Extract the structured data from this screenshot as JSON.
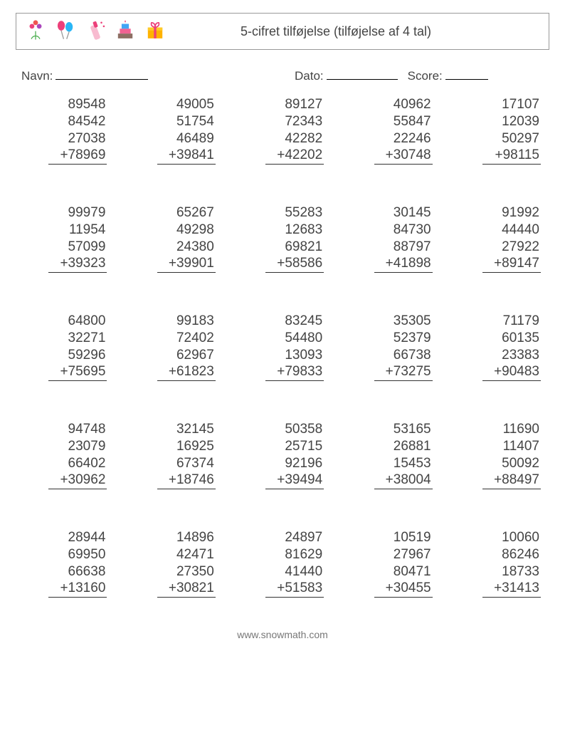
{
  "header": {
    "title": "5-cifret tilføjelse (tilføjelse af 4 tal)",
    "icons": [
      {
        "name": "bouquet",
        "colors": [
          "#e91e63",
          "#4caf50"
        ]
      },
      {
        "name": "balloons",
        "colors": [
          "#e91e63",
          "#9c27b0",
          "#29b6f6"
        ]
      },
      {
        "name": "champagne",
        "colors": [
          "#ec407a",
          "#f8bbd0"
        ]
      },
      {
        "name": "cake",
        "colors": [
          "#42a5f5",
          "#f06292",
          "#8d6e63"
        ]
      },
      {
        "name": "gift",
        "colors": [
          "#ffb300",
          "#ec407a"
        ]
      }
    ]
  },
  "labels": {
    "name": "Navn:",
    "date": "Dato:",
    "score": "Score:"
  },
  "blank_widths": {
    "name": 130,
    "date": 100,
    "score": 60
  },
  "style": {
    "font_size_problem": 19,
    "font_size_title": 18,
    "font_size_meta": 17,
    "text_color": "#444444",
    "border_color": "#999999",
    "columns": 5,
    "rows": 5
  },
  "problems": [
    {
      "addends": [
        89548,
        84542,
        27038,
        78969
      ]
    },
    {
      "addends": [
        49005,
        51754,
        46489,
        39841
      ]
    },
    {
      "addends": [
        89127,
        72343,
        42282,
        42202
      ]
    },
    {
      "addends": [
        40962,
        55847,
        22246,
        30748
      ]
    },
    {
      "addends": [
        17107,
        12039,
        50297,
        98115
      ]
    },
    {
      "addends": [
        99979,
        11954,
        57099,
        39323
      ]
    },
    {
      "addends": [
        65267,
        49298,
        24380,
        39901
      ]
    },
    {
      "addends": [
        55283,
        12683,
        69821,
        58586
      ]
    },
    {
      "addends": [
        30145,
        84730,
        88797,
        41898
      ]
    },
    {
      "addends": [
        91992,
        44440,
        27922,
        89147
      ]
    },
    {
      "addends": [
        64800,
        32271,
        59296,
        75695
      ]
    },
    {
      "addends": [
        99183,
        72402,
        62967,
        61823
      ]
    },
    {
      "addends": [
        83245,
        54480,
        13093,
        79833
      ]
    },
    {
      "addends": [
        35305,
        52379,
        66738,
        73275
      ]
    },
    {
      "addends": [
        71179,
        60135,
        23383,
        90483
      ]
    },
    {
      "addends": [
        94748,
        23079,
        66402,
        30962
      ]
    },
    {
      "addends": [
        32145,
        16925,
        67374,
        18746
      ]
    },
    {
      "addends": [
        50358,
        25715,
        92196,
        39494
      ]
    },
    {
      "addends": [
        53165,
        26881,
        15453,
        38004
      ]
    },
    {
      "addends": [
        11690,
        11407,
        50092,
        88497
      ]
    },
    {
      "addends": [
        28944,
        69950,
        66638,
        13160
      ]
    },
    {
      "addends": [
        14896,
        42471,
        27350,
        30821
      ]
    },
    {
      "addends": [
        24897,
        81629,
        41440,
        51583
      ]
    },
    {
      "addends": [
        10519,
        27967,
        80471,
        30455
      ]
    },
    {
      "addends": [
        10060,
        86246,
        18733,
        31413
      ]
    }
  ],
  "footer": "www.snowmath.com"
}
